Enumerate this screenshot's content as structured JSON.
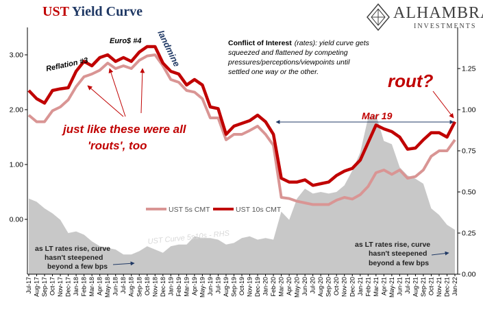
{
  "header": {
    "title_part1": "UST",
    "title_part2": "Yield Curve"
  },
  "logo": {
    "name": "ALHAMBRA",
    "sub": "INVESTMENTS"
  },
  "annotations": {
    "reflation": "Reflation #3",
    "euro": "Euro$ #4",
    "landmine": "landmine",
    "conflict_bold": "Conflict of Interest",
    "conflict_line1": "(rates): yield curve gets",
    "conflict_line2": "squeezed and flattened by competing",
    "conflict_line3": "pressures/perceptions/viewpoints until",
    "conflict_line4": "settled one way or the other.",
    "rout": "rout?",
    "mar19": "Mar 19",
    "routs_line1": "just like these were all",
    "routs_line2": "'routs', too",
    "lt_left_1": "as LT rates rise, curve",
    "lt_left_2": "hasn't steepened",
    "lt_left_3": "beyond a few bps",
    "lt_right_1": "as LT rates rise, curve",
    "lt_right_2": "hasn't steepened",
    "lt_right_3": "beyond a few bps",
    "curve_label": "UST Curve 5s10s - RHS"
  },
  "colors": {
    "ust5": "#d99594",
    "ust10": "#c00000",
    "curve": "#c8c8c8",
    "annotation": "#c00000",
    "arrow_blue": "#1f3864"
  },
  "chart_data": {
    "type": "line",
    "title": "UST Yield Curve",
    "grid": false,
    "legend": "bottom-center",
    "ylim_left": [
      -1.0,
      3.5
    ],
    "ylim_right": [
      0.0,
      1.5
    ],
    "yticks_left": [
      "3.00",
      "2.00",
      "1.00",
      "0.00"
    ],
    "yticks_right": [
      "1.25",
      "1.00",
      "0.75",
      "0.50",
      "0.25",
      "0.00"
    ],
    "categories": [
      "Jul-17",
      "Aug-17",
      "Sep-17",
      "Oct-17",
      "Nov-17",
      "Dec-17",
      "Jan-18",
      "Feb-18",
      "Mar-18",
      "Apr-18",
      "May-18",
      "Jun-18",
      "Jul-18",
      "Aug-18",
      "Sep-18",
      "Oct-18",
      "Nov-18",
      "Dec-18",
      "Jan-19",
      "Feb-19",
      "Mar-19",
      "Apr-19",
      "May-19",
      "Jun-19",
      "Jul-19",
      "Aug-19",
      "Sep-19",
      "Oct-19",
      "Nov-19",
      "Dec-19",
      "Jan-20",
      "Feb-20",
      "Mar-20",
      "Apr-20",
      "May-20",
      "Jun-20",
      "Jul-20",
      "Aug-20",
      "Sep-20",
      "Oct-20",
      "Nov-20",
      "Dec-20",
      "Jan-21",
      "Feb-21",
      "Mar-21",
      "Apr-21",
      "May-21",
      "Jun-21",
      "Jul-21",
      "Aug-21",
      "Sep-21",
      "Oct-21",
      "Nov-21",
      "Dec-21",
      "Jan-22"
    ],
    "series": [
      {
        "name": "UST 5s CMT",
        "axis": "left",
        "values": [
          1.9,
          1.78,
          1.78,
          1.98,
          2.05,
          2.18,
          2.42,
          2.6,
          2.65,
          2.72,
          2.85,
          2.75,
          2.8,
          2.75,
          2.9,
          2.98,
          3.0,
          2.8,
          2.55,
          2.5,
          2.35,
          2.32,
          2.2,
          1.85,
          1.85,
          1.45,
          1.55,
          1.55,
          1.62,
          1.7,
          1.55,
          1.35,
          0.4,
          0.38,
          0.33,
          0.3,
          0.27,
          0.27,
          0.27,
          0.35,
          0.4,
          0.37,
          0.45,
          0.6,
          0.85,
          0.9,
          0.82,
          0.9,
          0.75,
          0.78,
          0.9,
          1.15,
          1.25,
          1.25,
          1.45
        ]
      },
      {
        "name": "UST 10s CMT",
        "axis": "left",
        "values": [
          2.35,
          2.2,
          2.12,
          2.35,
          2.38,
          2.4,
          2.7,
          2.88,
          2.8,
          2.95,
          3.0,
          2.88,
          2.95,
          2.88,
          3.05,
          3.15,
          3.15,
          2.85,
          2.7,
          2.65,
          2.45,
          2.55,
          2.45,
          2.05,
          2.02,
          1.55,
          1.7,
          1.75,
          1.8,
          1.9,
          1.78,
          1.55,
          0.75,
          0.68,
          0.68,
          0.72,
          0.62,
          0.65,
          0.68,
          0.8,
          0.88,
          0.93,
          1.08,
          1.4,
          1.72,
          1.65,
          1.6,
          1.5,
          1.28,
          1.3,
          1.45,
          1.58,
          1.58,
          1.5,
          1.78
        ]
      },
      {
        "name": "UST Curve 5s10s - RHS",
        "axis": "right",
        "type": "area",
        "values": [
          0.46,
          0.44,
          0.4,
          0.37,
          0.33,
          0.25,
          0.26,
          0.24,
          0.2,
          0.17,
          0.16,
          0.15,
          0.12,
          0.12,
          0.14,
          0.17,
          0.15,
          0.13,
          0.17,
          0.18,
          0.18,
          0.23,
          0.22,
          0.22,
          0.21,
          0.18,
          0.19,
          0.22,
          0.23,
          0.21,
          0.22,
          0.21,
          0.38,
          0.33,
          0.46,
          0.52,
          0.49,
          0.5,
          0.49,
          0.5,
          0.54,
          0.63,
          0.74,
          0.95,
          0.97,
          0.81,
          0.79,
          0.65,
          0.6,
          0.58,
          0.55,
          0.4,
          0.36,
          0.3,
          0.27
        ]
      }
    ]
  }
}
